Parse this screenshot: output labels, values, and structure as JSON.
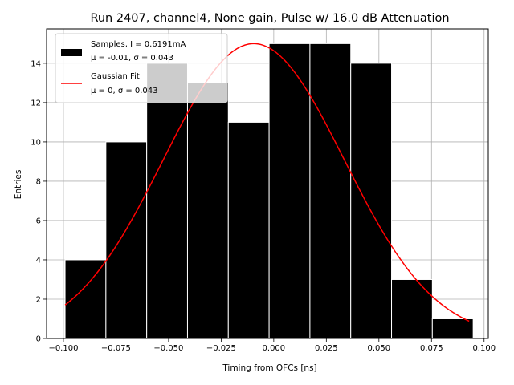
{
  "chart_data": {
    "type": "bar",
    "title": "Run 2407, channel4, None gain, Pulse w/ 16.0 dB Attenuation",
    "xlabel": "Timing from OFCs [ns]",
    "ylabel": "Entries",
    "xlim": [
      -0.108,
      0.102
    ],
    "ylim": [
      0,
      15.75
    ],
    "xticks": [
      -0.1,
      -0.075,
      -0.05,
      -0.025,
      0.0,
      0.025,
      0.05,
      0.075,
      0.1
    ],
    "xtick_labels": [
      "−0.100",
      "−0.075",
      "−0.050",
      "−0.025",
      "0.000",
      "0.025",
      "0.050",
      "0.075",
      "0.100"
    ],
    "yticks": [
      0,
      2,
      4,
      6,
      8,
      10,
      12,
      14
    ],
    "ytick_labels": [
      "0",
      "2",
      "4",
      "6",
      "8",
      "10",
      "12",
      "14"
    ],
    "grid": true,
    "legend_position": "top-left",
    "bin_edges": [
      -0.0992,
      -0.0798,
      -0.0604,
      -0.041,
      -0.0216,
      -0.0022,
      0.0172,
      0.0366,
      0.056,
      0.0754,
      0.0948
    ],
    "counts": [
      4,
      10,
      14,
      13,
      11,
      15,
      15,
      14,
      3,
      1
    ],
    "series": [
      {
        "name": "Samples, I = 0.6191mA",
        "name_line2": "μ = -0.01, σ = 0.043",
        "kind": "histogram",
        "color": "#000000",
        "edgecolor": "#ffffff"
      },
      {
        "name": "Gaussian Fit",
        "name_line2": "μ = 0, σ = 0.043",
        "kind": "line",
        "color": "#ff0000",
        "mu": -0.0095,
        "sigma": 0.043,
        "amplitude": 15.0,
        "x_range": [
          -0.0992,
          0.0929
        ]
      }
    ]
  }
}
